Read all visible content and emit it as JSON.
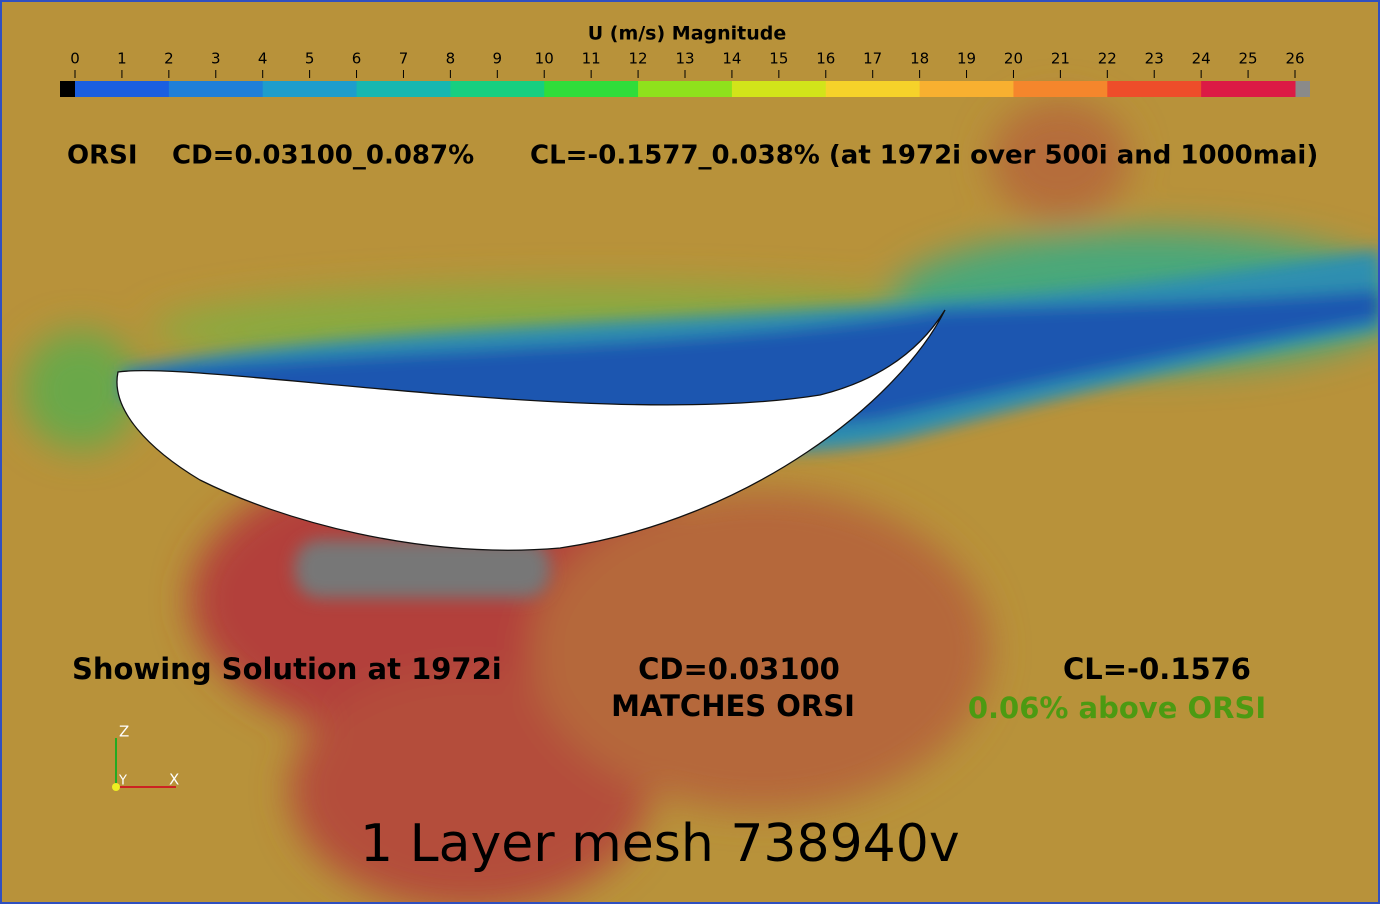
{
  "colorbar": {
    "title": "U (m/s) Magnitude",
    "ticks": [
      0,
      1,
      2,
      3,
      4,
      5,
      6,
      7,
      8,
      9,
      10,
      11,
      12,
      13,
      14,
      15,
      16,
      17,
      18,
      19,
      20,
      21,
      22,
      23,
      24,
      25,
      26
    ],
    "colors": [
      "#1a5fe0",
      "#1f7fd8",
      "#1e9dcc",
      "#17b7b0",
      "#16cf80",
      "#2fdd3a",
      "#8fe21c",
      "#d2e41a",
      "#f6d22a",
      "#f8b030",
      "#f5862c",
      "#ee4d2a",
      "#dc1a45"
    ],
    "below_color": "#000000",
    "above_color": "#8a8a8a"
  },
  "header": {
    "orsi": "ORSI",
    "cd": "CD=0.03100_0.087%",
    "cl": "CL=-0.1577_0.038% (at 1972i over 500i and 1000mai)"
  },
  "results": {
    "showing": "Showing Solution at 1972i",
    "cd": "CD=0.03100",
    "cd_note": "MATCHES ORSI",
    "cl": "CL=-0.1576",
    "cl_note": "0.06% above ORSI"
  },
  "axes": {
    "z": "Z",
    "y": "Y",
    "x": "X"
  },
  "footer": "1 Layer mesh 738940v"
}
